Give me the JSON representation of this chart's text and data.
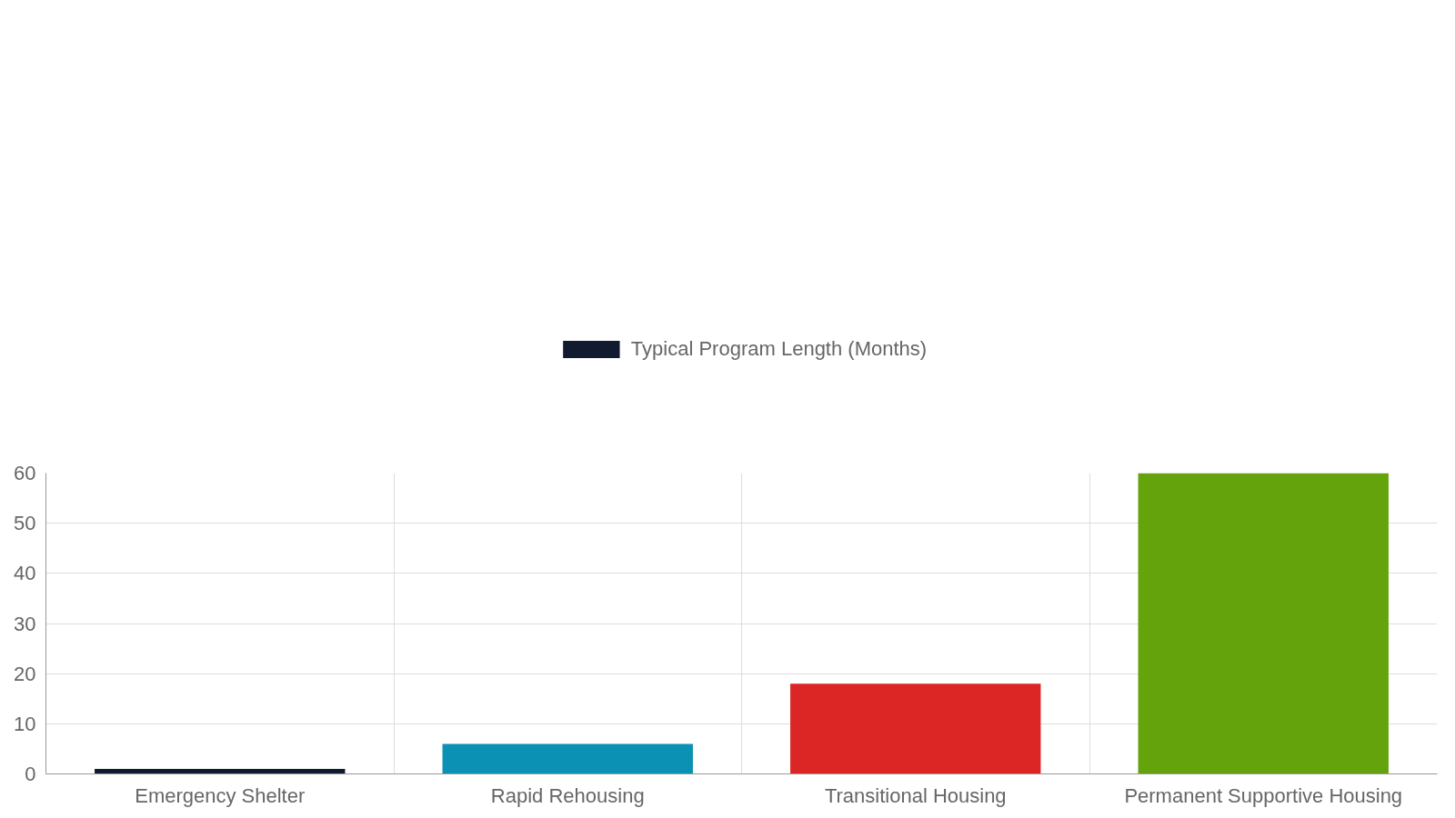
{
  "chart_data": {
    "type": "bar",
    "categories": [
      "Emergency Shelter",
      "Rapid Rehousing",
      "Transitional Housing",
      "Permanent Supportive Housing"
    ],
    "series": [
      {
        "name": "Typical Program Length (Months)",
        "colors": [
          "#111a2e",
          "#0a91b4",
          "#dc2626",
          "#65a30d"
        ],
        "values": [
          1,
          6,
          18,
          60
        ]
      }
    ],
    "ylim": [
      0,
      60
    ],
    "yticks": [
      0,
      10,
      20,
      30,
      40,
      50,
      60
    ],
    "grid": true,
    "legend": "top"
  }
}
